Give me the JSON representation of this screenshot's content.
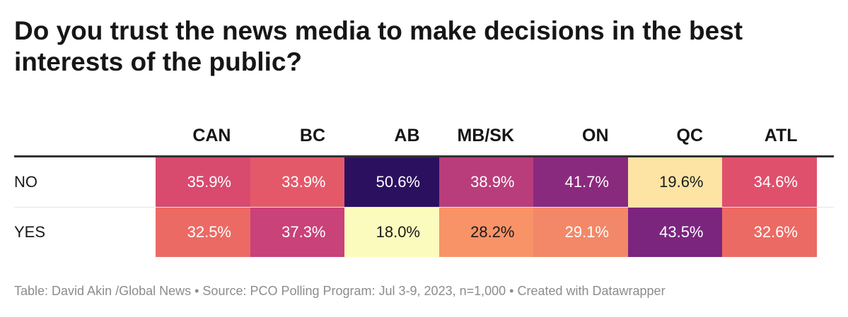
{
  "title": "Do you trust the news media to make decisions in the best interests of the public?",
  "footer": {
    "text": "Table: David Akin /Global News • Source: PCO Polling Program: Jul 3-9, 2023, n=1,000 • Created with Datawrapper"
  },
  "chart_data": {
    "type": "heatmap",
    "title": "Do you trust the news media to make decisions in the best interests of the public?",
    "columns": [
      "CAN",
      "BC",
      "AB",
      "MB/SK",
      "ON",
      "QC",
      "ATL"
    ],
    "rows": [
      {
        "label": "NO",
        "values": [
          35.9,
          33.9,
          50.6,
          38.9,
          41.7,
          19.6,
          34.6
        ],
        "labels": [
          "35.9%",
          "33.9%",
          "50.6%",
          "38.9%",
          "41.7%",
          "19.6%",
          "34.6%"
        ],
        "colors": [
          "#d94a6f",
          "#e4596a",
          "#2c1060",
          "#b93d7b",
          "#8a2a7e",
          "#fde4a4",
          "#df506c"
        ],
        "text_colors": [
          "#ffffff",
          "#ffffff",
          "#ffffff",
          "#ffffff",
          "#ffffff",
          "#1a1a1a",
          "#ffffff"
        ]
      },
      {
        "label": "YES",
        "values": [
          32.5,
          37.3,
          18.0,
          28.2,
          29.1,
          43.5,
          32.6
        ],
        "labels": [
          "32.5%",
          "37.3%",
          "18.0%",
          "28.2%",
          "29.1%",
          "43.5%",
          "32.6%"
        ],
        "colors": [
          "#ec6a64",
          "#c9427a",
          "#fbfbbd",
          "#f89368",
          "#f28868",
          "#7b257f",
          "#ec6a64"
        ],
        "text_colors": [
          "#ffffff",
          "#ffffff",
          "#1a1a1a",
          "#1a1a1a",
          "#ffffff",
          "#ffffff",
          "#ffffff"
        ]
      }
    ]
  }
}
